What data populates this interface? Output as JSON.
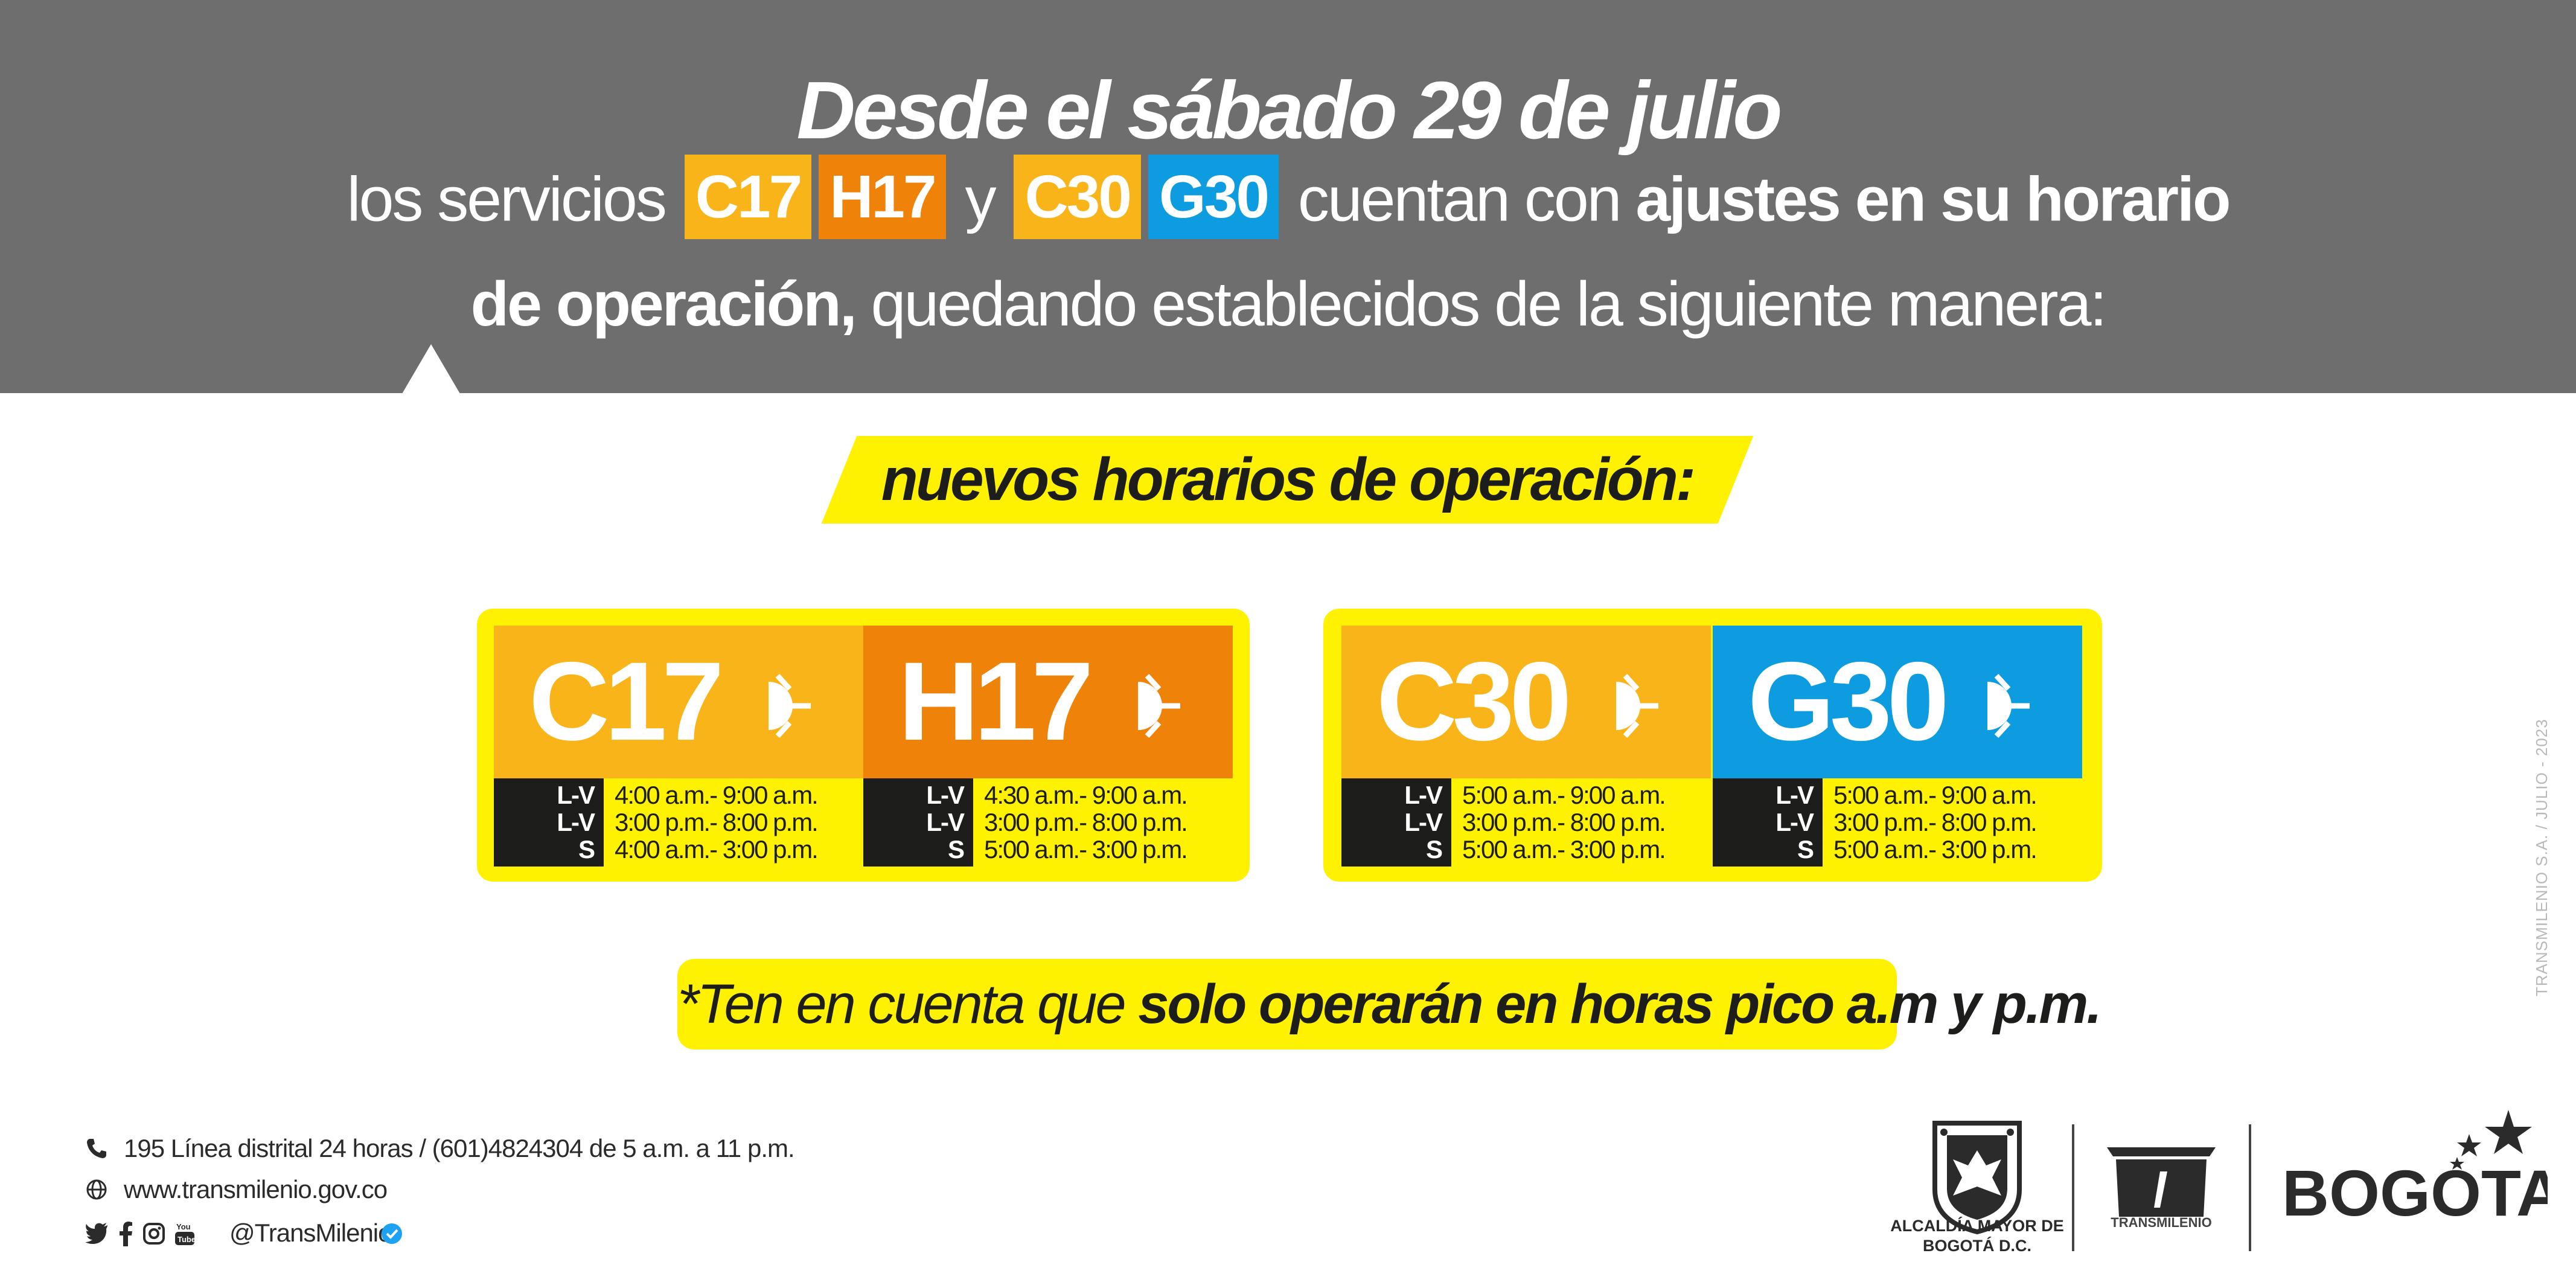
{
  "header": {
    "headline": "Desde el sábado 29 de julio",
    "line2_prefix": "los servicios",
    "route_chips": [
      "C17",
      "H17",
      "C30",
      "G30"
    ],
    "conjunction": "y",
    "line2_middle": "cuentan con",
    "line2_bold": "ajustes en su horario",
    "line3_bold": "de operación,",
    "line3_rest": "quedando establecidos de la siguiente manera:"
  },
  "banner": {
    "text": "nuevos horarios de operación:"
  },
  "cards": [
    {
      "routes": [
        {
          "code": "C17",
          "color": "#f9b41a",
          "icon": "sun-rise-icon",
          "schedule": [
            {
              "days": "L-V",
              "time": "4:00 a.m.- 9:00 a.m."
            },
            {
              "days": "L-V",
              "time": "3:00 p.m.- 8:00 p.m."
            },
            {
              "days": "S",
              "time": "4:00 a.m.- 3:00 p.m."
            }
          ]
        },
        {
          "code": "H17",
          "color": "#ef8208",
          "icon": "sun-rise-icon",
          "schedule": [
            {
              "days": "L-V",
              "time": "4:30 a.m.- 9:00 a.m."
            },
            {
              "days": "L-V",
              "time": "3:00 p.m.- 8:00 p.m."
            },
            {
              "days": "S",
              "time": "5:00 a.m.- 3:00 p.m."
            }
          ]
        }
      ]
    },
    {
      "routes": [
        {
          "code": "C30",
          "color": "#f9b41a",
          "icon": "sun-rise-icon",
          "schedule": [
            {
              "days": "L-V",
              "time": "5:00 a.m.- 9:00 a.m."
            },
            {
              "days": "L-V",
              "time": "3:00 p.m.- 8:00 p.m."
            },
            {
              "days": "S",
              "time": "5:00 a.m.- 3:00 p.m."
            }
          ]
        },
        {
          "code": "G30",
          "color": "#0d9ce0",
          "icon": "sun-rise-icon",
          "schedule": [
            {
              "days": "L-V",
              "time": "5:00 a.m.- 9:00 a.m."
            },
            {
              "days": "L-V",
              "time": "3:00 p.m.- 8:00 p.m."
            },
            {
              "days": "S",
              "time": "5:00 a.m.- 3:00 p.m."
            }
          ]
        }
      ]
    }
  ],
  "note": {
    "prefix": "*Ten en cuenta que",
    "bold": "solo operarán en horas pico a.m y p.m."
  },
  "credit": "TRANSMILENIO S.A. / JULIO - 2023",
  "footer": {
    "phone": "195 Línea distrital 24 horas / (601)4824304 de 5 a.m. a 11 p.m.",
    "website": "www.transmilenio.gov.co",
    "social_handle": "@TransMilenio",
    "social_icons": [
      "twitter-icon",
      "facebook-icon",
      "instagram-icon",
      "youtube-icon",
      "verified-icon"
    ]
  },
  "logos": {
    "alcaldia": "ALCALDÍA MAYOR DE BOGOTÁ D.C.",
    "transmilenio": "TRANSMILENIO",
    "bogota": "BOGOTA"
  },
  "colors": {
    "header_bg": "#6e6e6e",
    "yellow": "#fff200",
    "dark": "#1d1d1b"
  }
}
